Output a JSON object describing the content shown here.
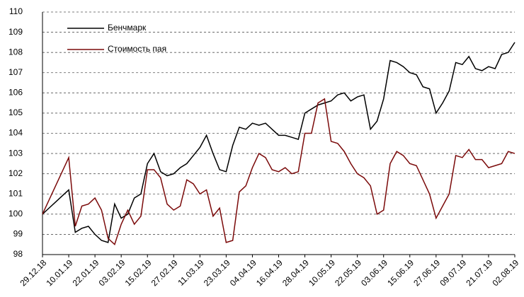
{
  "chart_data": {
    "type": "line",
    "categories": [
      "29.12.18",
      null,
      null,
      null,
      "10.01.19",
      null,
      null,
      null,
      "22.01.19",
      null,
      null,
      null,
      "03.02.19",
      null,
      null,
      null,
      "15.02.19",
      null,
      null,
      null,
      "27.02.19",
      null,
      null,
      null,
      "11.03.19",
      null,
      null,
      null,
      "23.03.19",
      null,
      null,
      null,
      "04.04.19",
      null,
      null,
      null,
      "16.04.19",
      null,
      null,
      null,
      "28.04.19",
      null,
      null,
      null,
      "10.05.19",
      null,
      null,
      null,
      "22.05.19",
      null,
      null,
      null,
      "03.06.19",
      null,
      null,
      null,
      "15.06.19",
      null,
      null,
      null,
      "27.06.19",
      null,
      null,
      null,
      "09.07.19",
      null,
      null,
      null,
      "21.07.19",
      null,
      null,
      null,
      "02.08.19"
    ],
    "series": [
      {
        "name": "Бенчмарк",
        "color": "#000000",
        "values": [
          100,
          100.3,
          100.6,
          100.9,
          101.2,
          99.1,
          99.3,
          99.4,
          99.0,
          98.7,
          98.6,
          100.5,
          99.8,
          100.0,
          100.8,
          101.0,
          102.5,
          103.0,
          102.1,
          101.9,
          102.0,
          102.3,
          102.5,
          102.9,
          103.3,
          103.9,
          103.0,
          102.2,
          102.1,
          103.4,
          104.3,
          104.2,
          104.5,
          104.4,
          104.5,
          104.2,
          103.9,
          103.9,
          103.8,
          103.7,
          105.0,
          105.2,
          105.4,
          105.5,
          105.6,
          105.9,
          106.0,
          105.6,
          105.8,
          105.9,
          104.2,
          104.6,
          105.7,
          107.6,
          107.5,
          107.3,
          107.0,
          106.9,
          106.3,
          106.2,
          105.0,
          105.5,
          106.1,
          107.5,
          107.4,
          107.8,
          107.2,
          107.1,
          107.3,
          107.2,
          107.9,
          108.0,
          108.5
        ]
      },
      {
        "name": "Стоимость пая",
        "color": "#7b0a0a",
        "values": [
          100,
          100.7,
          101.4,
          102.1,
          102.8,
          99.4,
          100.4,
          100.5,
          100.8,
          100.2,
          98.8,
          98.5,
          99.5,
          100.2,
          99.5,
          99.9,
          102.2,
          102.2,
          101.8,
          100.5,
          100.2,
          100.4,
          101.7,
          101.5,
          101.0,
          101.2,
          99.9,
          100.3,
          98.6,
          98.7,
          101.1,
          101.4,
          102.3,
          103.0,
          102.8,
          102.2,
          102.1,
          102.3,
          102.0,
          102.1,
          104.0,
          104.0,
          105.5,
          105.7,
          103.6,
          103.5,
          103.1,
          102.5,
          102.0,
          101.8,
          101.4,
          100.0,
          100.2,
          102.5,
          103.1,
          102.9,
          102.5,
          102.4,
          101.7,
          101.0,
          99.8,
          100.4,
          101.0,
          102.9,
          102.8,
          103.2,
          102.7,
          102.7,
          102.3,
          102.4,
          102.5,
          103.1,
          103.0
        ]
      }
    ],
    "ylim": [
      98,
      110
    ],
    "yticks": [
      98,
      99,
      100,
      101,
      102,
      103,
      104,
      105,
      106,
      107,
      108,
      109,
      110
    ],
    "grid": true,
    "legend": "upper left"
  }
}
